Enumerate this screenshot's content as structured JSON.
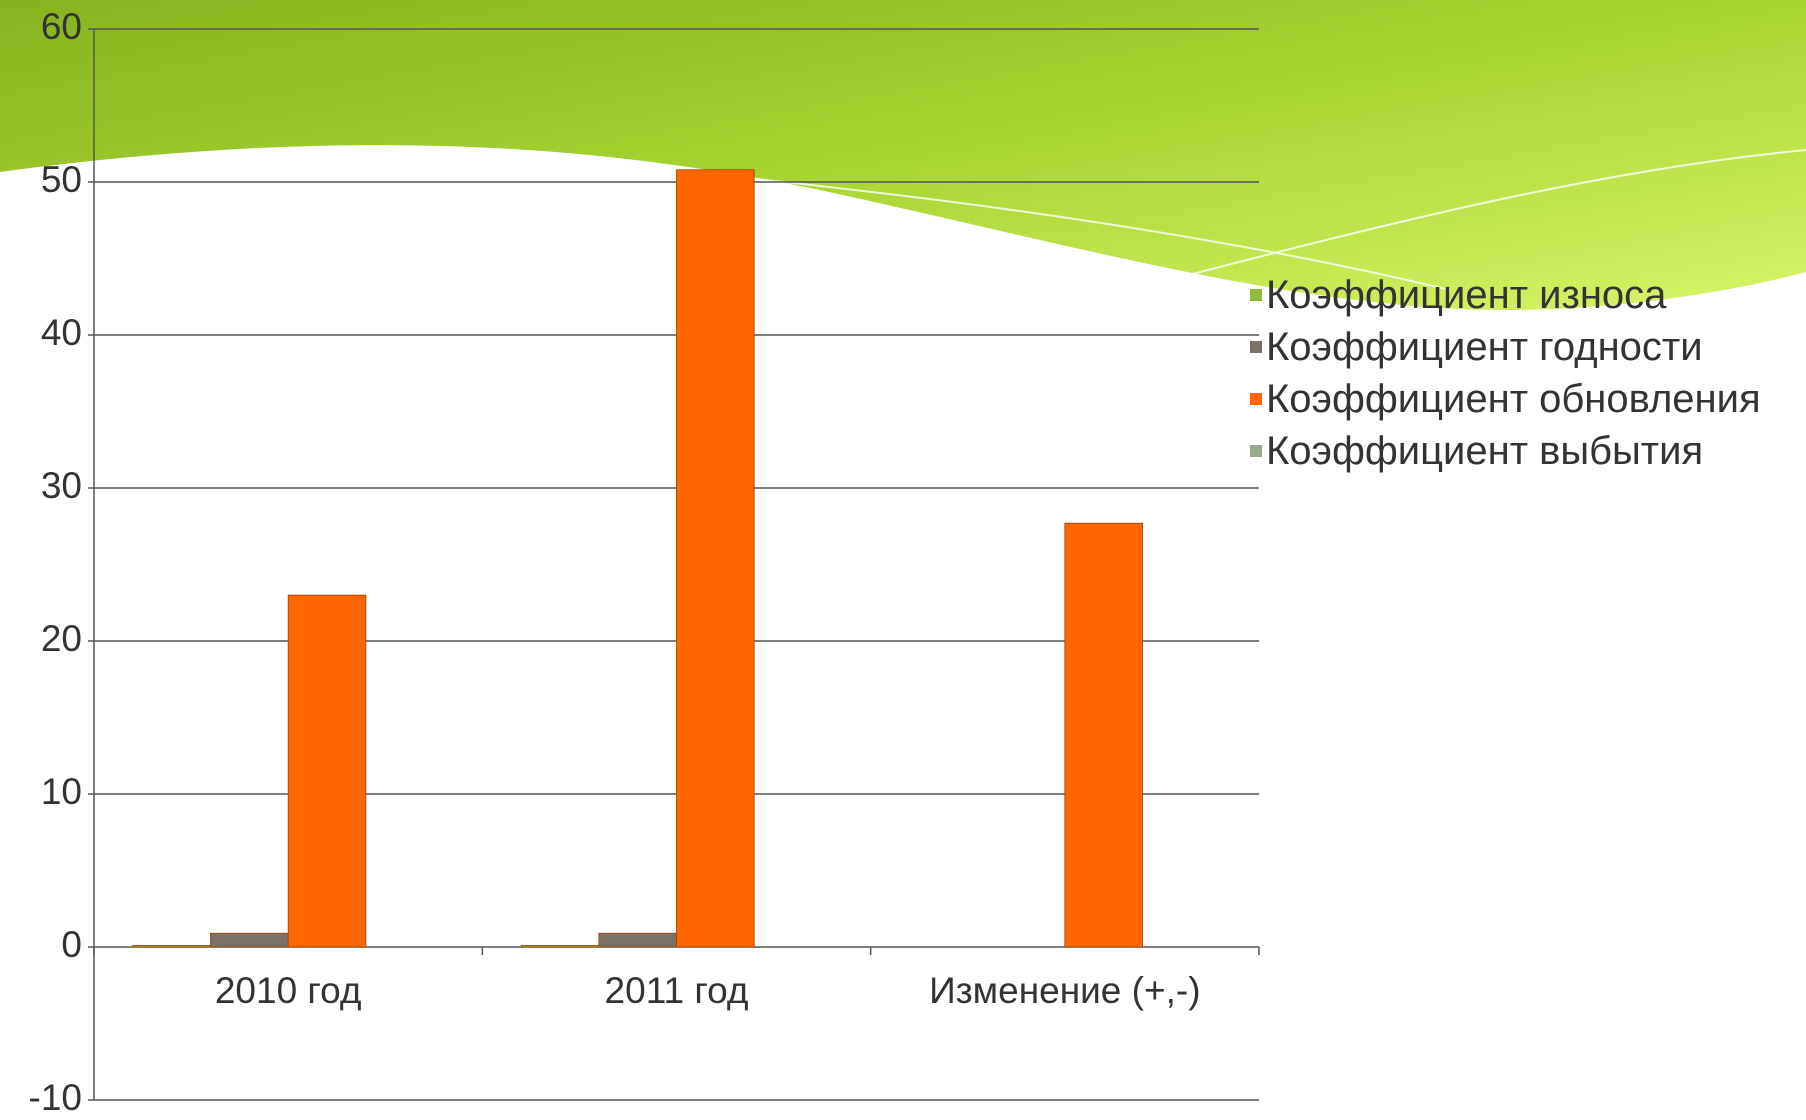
{
  "chart_data": {
    "type": "bar",
    "categories": [
      "2010 год",
      "2011 год",
      "Изменение (+,-)"
    ],
    "series": [
      {
        "name": "Коэффициент износа",
        "color": "#8fbc3a",
        "values": [
          0.1,
          0.1,
          0
        ]
      },
      {
        "name": "Коэффициент годности",
        "color": "#7a7267",
        "values": [
          0.9,
          0.9,
          0
        ]
      },
      {
        "name": "Коэффициент обновления",
        "color": "#ff6600",
        "values": [
          23,
          50.8,
          27.7
        ]
      },
      {
        "name": "Коэффициент выбытия",
        "color": "#98a88a",
        "values": [
          0,
          0,
          0
        ]
      }
    ],
    "ylim": [
      -10,
      60
    ],
    "yticks": [
      -10,
      0,
      10,
      20,
      30,
      40,
      50,
      60
    ],
    "grid": true
  }
}
